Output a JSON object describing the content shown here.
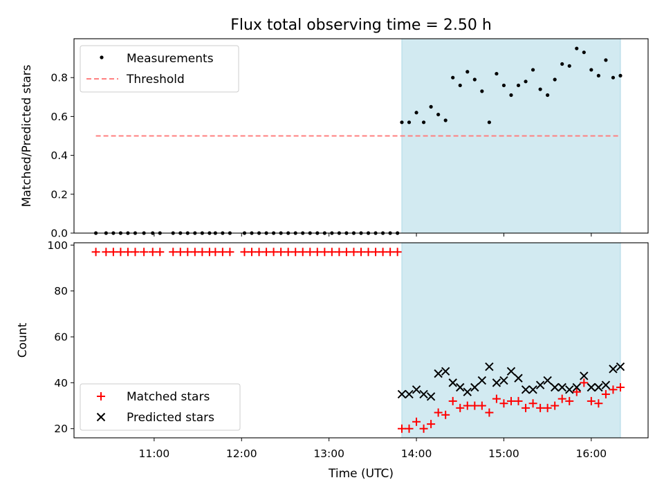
{
  "title": "Flux total observing time = 2.50 h",
  "colors": {
    "span_fill": "#add8e6",
    "threshold": "#ff7f7f",
    "measurements": "#000000",
    "matched": "#ff0000",
    "predicted": "#000000"
  },
  "chart_data": [
    {
      "type": "scatter",
      "panel": "top",
      "ylabel": "Matched/Predicted stars",
      "xlim": [
        "10:05",
        "16:39"
      ],
      "ylim": [
        0,
        1.0
      ],
      "yticks": [
        0.0,
        0.2,
        0.4,
        0.6,
        0.8
      ],
      "ytick_labels": [
        "0.0",
        "0.2",
        "0.4",
        "0.6",
        "0.8"
      ],
      "grid": false,
      "legend_position": "upper-left",
      "shaded_span": [
        "13:50",
        "16:20"
      ],
      "series": [
        {
          "name": "Measurements",
          "marker": "dot",
          "x": [
            "10:20",
            "10:27",
            "10:32",
            "10:37",
            "10:42",
            "10:47",
            "10:53",
            "10:59",
            "11:04",
            "11:13",
            "11:18",
            "11:23",
            "11:28",
            "11:33",
            "11:38",
            "11:42",
            "11:47",
            "11:52",
            "12:02",
            "12:07",
            "12:12",
            "12:17",
            "12:22",
            "12:27",
            "12:32",
            "12:37",
            "12:42",
            "12:47",
            "12:52",
            "12:57",
            "13:02",
            "13:07",
            "13:12",
            "13:17",
            "13:22",
            "13:27",
            "13:32",
            "13:37",
            "13:42",
            "13:47",
            "13:50",
            "13:55",
            "14:00",
            "14:05",
            "14:10",
            "14:15",
            "14:20",
            "14:25",
            "14:30",
            "14:35",
            "14:40",
            "14:45",
            "14:50",
            "14:55",
            "15:00",
            "15:05",
            "15:10",
            "15:15",
            "15:20",
            "15:25",
            "15:30",
            "15:35",
            "15:40",
            "15:45",
            "15:50",
            "15:55",
            "16:00",
            "16:05",
            "16:10",
            "16:15",
            "16:20"
          ],
          "y": [
            0,
            0,
            0,
            0,
            0,
            0,
            0,
            0,
            0,
            0,
            0,
            0,
            0,
            0,
            0,
            0,
            0,
            0,
            0,
            0,
            0,
            0,
            0,
            0,
            0,
            0,
            0,
            0,
            0,
            0,
            0,
            0,
            0,
            0,
            0,
            0,
            0,
            0,
            0,
            0,
            0.57,
            0.57,
            0.62,
            0.57,
            0.65,
            0.61,
            0.58,
            0.8,
            0.76,
            0.83,
            0.79,
            0.73,
            0.57,
            0.82,
            0.76,
            0.71,
            0.76,
            0.78,
            0.84,
            0.74,
            0.71,
            0.79,
            0.87,
            0.86,
            0.95,
            0.93,
            0.84,
            0.81,
            0.89,
            0.8,
            0.81
          ]
        },
        {
          "name": "Threshold",
          "style": "dashed-line",
          "x": [
            "10:20",
            "16:20"
          ],
          "y": [
            0.5,
            0.5
          ]
        }
      ]
    },
    {
      "type": "scatter",
      "panel": "bottom",
      "xlabel": "Time (UTC)",
      "ylabel": "Count",
      "xlim": [
        "10:05",
        "16:39"
      ],
      "ylim": [
        16,
        101
      ],
      "xticks": [
        "11:00",
        "12:00",
        "13:00",
        "14:00",
        "15:00",
        "16:00"
      ],
      "yticks": [
        20,
        40,
        60,
        80,
        100
      ],
      "ytick_labels": [
        "20",
        "40",
        "60",
        "80",
        "100"
      ],
      "grid": false,
      "legend_position": "lower-left",
      "shaded_span": [
        "13:50",
        "16:20"
      ],
      "series": [
        {
          "name": "Matched stars",
          "marker": "plus",
          "x": [
            "10:20",
            "10:27",
            "10:32",
            "10:37",
            "10:42",
            "10:47",
            "10:53",
            "10:59",
            "11:04",
            "11:13",
            "11:18",
            "11:23",
            "11:28",
            "11:33",
            "11:38",
            "11:42",
            "11:47",
            "11:52",
            "12:02",
            "12:07",
            "12:12",
            "12:17",
            "12:22",
            "12:27",
            "12:32",
            "12:37",
            "12:42",
            "12:47",
            "12:52",
            "12:57",
            "13:02",
            "13:07",
            "13:12",
            "13:17",
            "13:22",
            "13:27",
            "13:32",
            "13:37",
            "13:42",
            "13:47",
            "13:50",
            "13:55",
            "14:00",
            "14:05",
            "14:10",
            "14:15",
            "14:20",
            "14:25",
            "14:30",
            "14:35",
            "14:40",
            "14:45",
            "14:50",
            "14:55",
            "15:00",
            "15:05",
            "15:10",
            "15:15",
            "15:20",
            "15:25",
            "15:30",
            "15:35",
            "15:40",
            "15:45",
            "15:50",
            "15:55",
            "16:00",
            "16:05",
            "16:10",
            "16:15",
            "16:20"
          ],
          "y": [
            97,
            97,
            97,
            97,
            97,
            97,
            97,
            97,
            97,
            97,
            97,
            97,
            97,
            97,
            97,
            97,
            97,
            97,
            97,
            97,
            97,
            97,
            97,
            97,
            97,
            97,
            97,
            97,
            97,
            97,
            97,
            97,
            97,
            97,
            97,
            97,
            97,
            97,
            97,
            97,
            20,
            20,
            23,
            20,
            22,
            27,
            26,
            32,
            29,
            30,
            30,
            30,
            27,
            33,
            31,
            32,
            32,
            29,
            31,
            29,
            29,
            30,
            33,
            32,
            36,
            40,
            32,
            31,
            35,
            37,
            38
          ]
        },
        {
          "name": "Predicted stars",
          "marker": "x",
          "x": [
            "13:50",
            "13:55",
            "14:00",
            "14:05",
            "14:10",
            "14:15",
            "14:20",
            "14:25",
            "14:30",
            "14:35",
            "14:40",
            "14:45",
            "14:50",
            "14:55",
            "15:00",
            "15:05",
            "15:10",
            "15:15",
            "15:20",
            "15:25",
            "15:30",
            "15:35",
            "15:40",
            "15:45",
            "15:50",
            "15:55",
            "16:00",
            "16:05",
            "16:10",
            "16:15",
            "16:20"
          ],
          "y": [
            35,
            35,
            37,
            35,
            34,
            44,
            45,
            40,
            38,
            36,
            38,
            41,
            47,
            40,
            41,
            45,
            42,
            37,
            37,
            39,
            41,
            38,
            38,
            37,
            38,
            43,
            38,
            38,
            39,
            46,
            47
          ]
        }
      ]
    }
  ]
}
